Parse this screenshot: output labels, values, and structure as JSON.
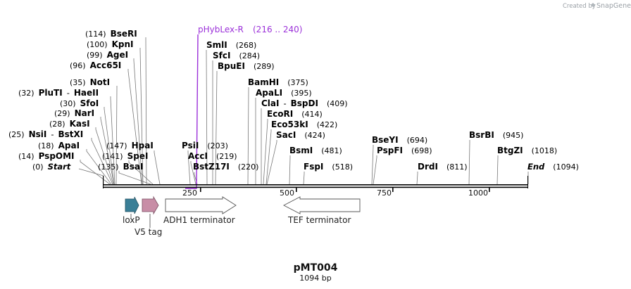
{
  "credit": {
    "prefix": "Created by",
    "brand": "SnapGene"
  },
  "primer": {
    "name": "pHybLex-R",
    "range": "(216 .. 240)",
    "color": "#9b30d9"
  },
  "enzymes": [
    {
      "name": "BseRI",
      "pos": "(114)",
      "loc": 114
    },
    {
      "name": "KpnI",
      "pos": "(100)",
      "loc": 100
    },
    {
      "name": "AgeI",
      "pos": "(99)",
      "loc": 99
    },
    {
      "name": "Acc65I",
      "pos": "(96)",
      "loc": 96
    },
    {
      "name": "NotI",
      "pos": "(35)",
      "loc": 35
    },
    {
      "name": "PluTI",
      "pos": "(32)",
      "loc": 32,
      "alt": "HaeII"
    },
    {
      "name": "SfoI",
      "pos": "(30)",
      "loc": 30
    },
    {
      "name": "NarI",
      "pos": "(29)",
      "loc": 29
    },
    {
      "name": "KasI",
      "pos": "(28)",
      "loc": 28
    },
    {
      "name": "NsiI",
      "pos": "(25)",
      "loc": 25,
      "alt": "BstXI"
    },
    {
      "name": "ApaI",
      "pos": "(18)",
      "loc": 18
    },
    {
      "name": "PspOMI",
      "pos": "(14)",
      "loc": 14
    },
    {
      "name": "Start",
      "pos": "(0)",
      "loc": 0
    },
    {
      "name": "HpaI",
      "pos": "(147)",
      "loc": 147
    },
    {
      "name": "SpeI",
      "pos": "(141)",
      "loc": 141
    },
    {
      "name": "BsaI",
      "pos": "(135)",
      "loc": 135
    },
    {
      "name": "SmlI",
      "pos": "(268)",
      "loc": 268
    },
    {
      "name": "SfcI",
      "pos": "(284)",
      "loc": 284
    },
    {
      "name": "BpuEI",
      "pos": "(289)",
      "loc": 289
    },
    {
      "name": "PsiI",
      "pos": "(203)",
      "loc": 203
    },
    {
      "name": "AccI",
      "pos": "(219)",
      "loc": 219
    },
    {
      "name": "BstZ17I",
      "pos": "(220)",
      "loc": 220
    },
    {
      "name": "BamHI",
      "pos": "(375)",
      "loc": 375
    },
    {
      "name": "ApaLI",
      "pos": "(395)",
      "loc": 395
    },
    {
      "name": "ClaI",
      "pos": "(409)",
      "loc": 409,
      "alt": "BspDI"
    },
    {
      "name": "EcoRI",
      "pos": "(414)",
      "loc": 414
    },
    {
      "name": "Eco53kI",
      "pos": "(422)",
      "loc": 422
    },
    {
      "name": "SacI",
      "pos": "(424)",
      "loc": 424
    },
    {
      "name": "BsmI",
      "pos": "(481)",
      "loc": 481
    },
    {
      "name": "FspI",
      "pos": "(518)",
      "loc": 518
    },
    {
      "name": "BseYI",
      "pos": "(694)",
      "loc": 694
    },
    {
      "name": "PspFI",
      "pos": "(698)",
      "loc": 698
    },
    {
      "name": "DrdI",
      "pos": "(811)",
      "loc": 811
    },
    {
      "name": "BsrBI",
      "pos": "(945)",
      "loc": 945
    },
    {
      "name": "BtgZI",
      "pos": "(1018)",
      "loc": 1018
    },
    {
      "name": "End",
      "pos": "(1094)",
      "loc": 1094
    }
  ],
  "ticks": [
    {
      "label": "250",
      "value": 250
    },
    {
      "label": "500",
      "value": 500
    },
    {
      "label": "750",
      "value": 750
    },
    {
      "label": "1000",
      "value": 1000
    }
  ],
  "features": [
    {
      "name": "loxP",
      "color": "#3a7f97"
    },
    {
      "name": "V5 tag",
      "color": "#c88da6"
    },
    {
      "name": "ADH1 terminator",
      "color": "#ffffff"
    },
    {
      "name": "TEF terminator",
      "color": "#ffffff"
    }
  ],
  "plasmid": {
    "name": "pMT004",
    "length": "1094 bp"
  }
}
